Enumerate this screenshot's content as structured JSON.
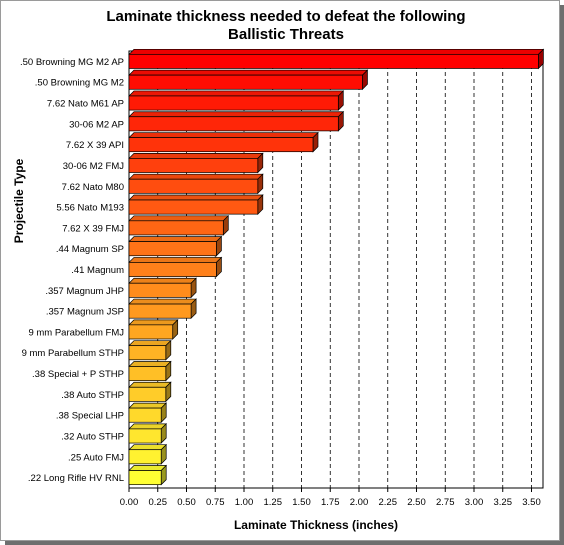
{
  "chart_data": {
    "type": "bar",
    "orientation": "horizontal",
    "title": [
      "Laminate thickness needed to defeat the following",
      "Ballistic Threats"
    ],
    "xlabel": "Laminate Thickness (inches)",
    "ylabel": "Projectile Type",
    "xlim": [
      0,
      3.6
    ],
    "xticks": [
      "0.00",
      "0.25",
      "0.50",
      "0.75",
      "1.00",
      "1.25",
      "1.50",
      "1.75",
      "2.00",
      "2.25",
      "2.50",
      "2.75",
      "3.00",
      "3.25",
      "3.50"
    ],
    "grid": "vertical-dashed",
    "categories": [
      ".50 Browning MG M2 AP",
      ".50 Browning MG M2",
      "7.62 Nato M61 AP",
      "30-06 M2 AP",
      "7.62 X 39 API",
      "30-06 M2 FMJ",
      "7.62 Nato M80",
      "5.56 Nato M193",
      "7.62 X 39 FMJ",
      ".44 Magnum SP",
      ".41 Magnum",
      ".357 Magnum JHP",
      ".357 Magnum JSP",
      "9 mm Parabellum FMJ",
      "9 mm Parabellum STHP",
      ".38 Special + P STHP",
      ".38 Auto STHP",
      ".38 Special LHP",
      ".32 Auto STHP",
      ".25 Auto FMJ",
      ".22 Long Rifle HV RNL"
    ],
    "values": [
      3.56,
      2.03,
      1.82,
      1.82,
      1.6,
      1.12,
      1.12,
      1.12,
      0.82,
      0.76,
      0.76,
      0.54,
      0.54,
      0.38,
      0.32,
      0.32,
      0.32,
      0.28,
      0.28,
      0.28,
      0.28
    ],
    "bar_colors": [
      "#ff0000",
      "#ffff33"
    ]
  }
}
